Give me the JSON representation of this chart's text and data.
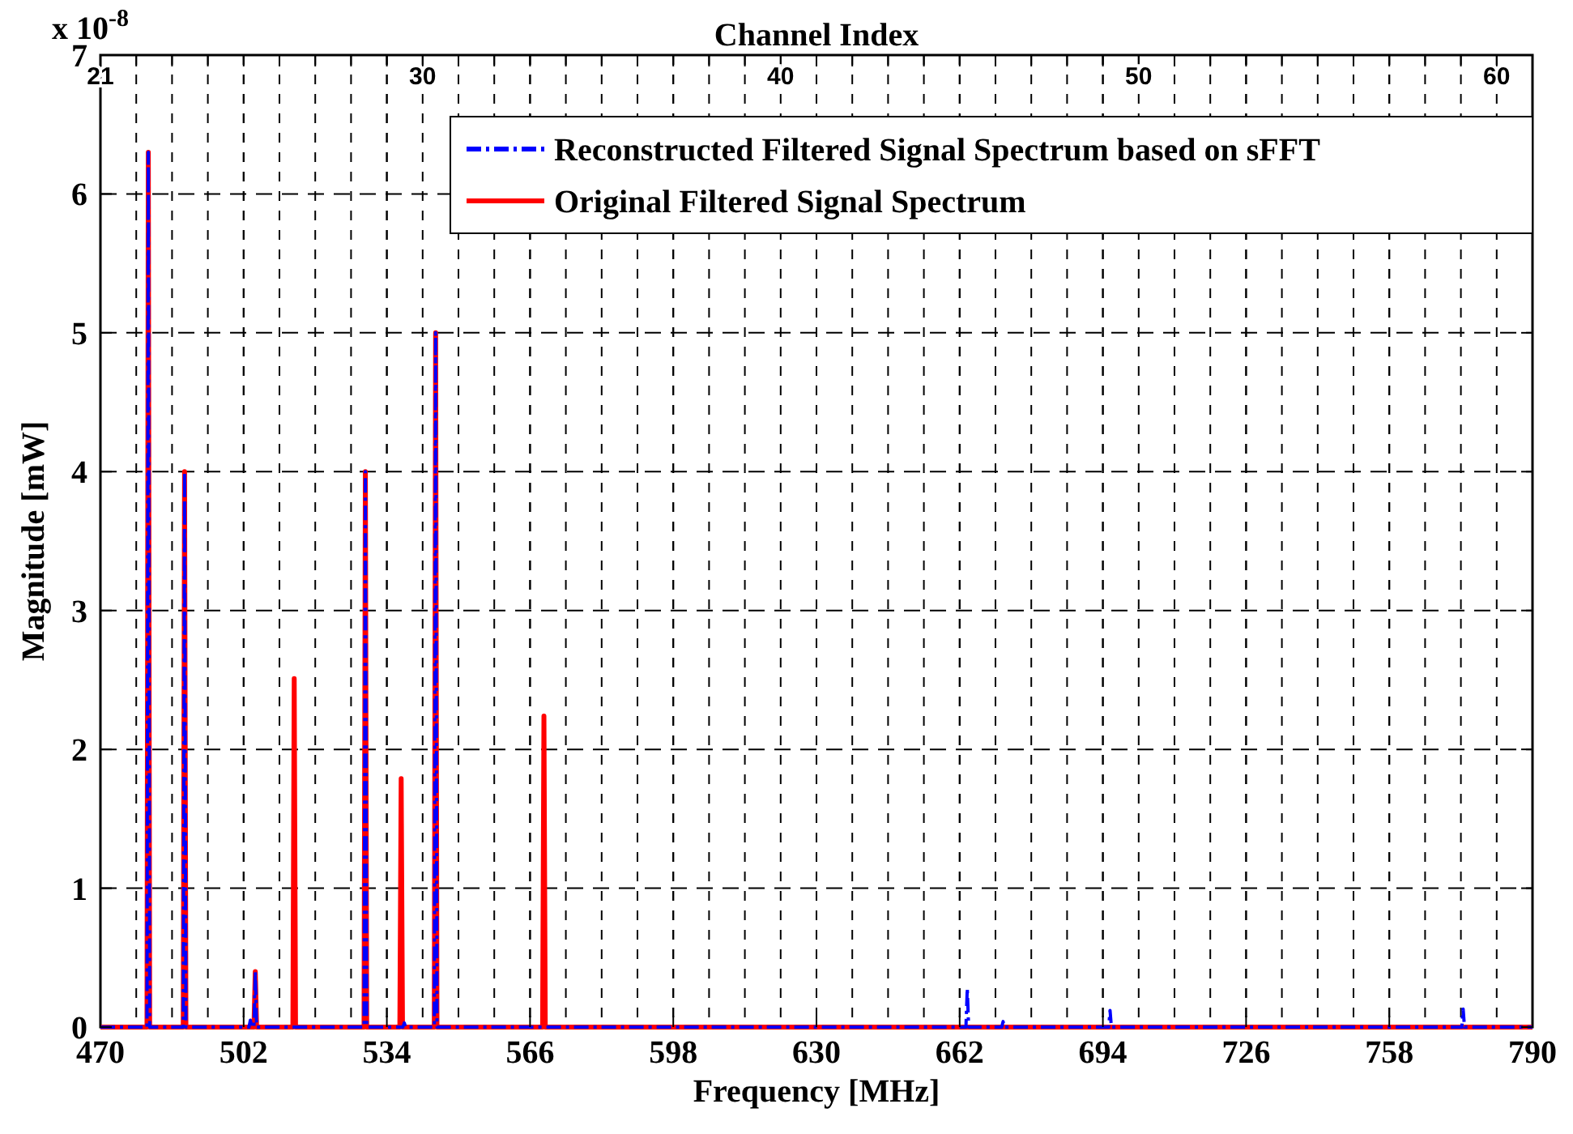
{
  "chart_data": {
    "type": "line",
    "x2label": "Channel Index",
    "xlabel": "Frequency [MHz]",
    "ylabel": "Magnitude [mW]",
    "annotations": [
      "x 10$^{-8}$"
    ],
    "xlim": [
      470,
      790
    ],
    "xticks": [
      470,
      502,
      534,
      566,
      598,
      630,
      662,
      694,
      726,
      758,
      790
    ],
    "x2lim": [
      21,
      61
    ],
    "x2ticks": [
      21,
      {
        "value": 22,
        "label": null
      },
      {
        "value": 23,
        "label": null
      },
      {
        "value": 24,
        "label": null
      },
      {
        "value": 25,
        "label": null
      },
      {
        "value": 26,
        "label": null
      },
      {
        "value": 27,
        "label": null
      },
      {
        "value": 28,
        "label": null
      },
      {
        "value": 29,
        "label": null
      },
      30,
      {
        "value": 31,
        "label": null
      },
      {
        "value": 32,
        "label": null
      },
      {
        "value": 33,
        "label": null
      },
      {
        "value": 34,
        "label": null
      },
      {
        "value": 35,
        "label": null
      },
      {
        "value": 36,
        "label": null
      },
      {
        "value": 37,
        "label": null
      },
      {
        "value": 38,
        "label": null
      },
      {
        "value": 39,
        "label": null
      },
      40,
      {
        "value": 41,
        "label": null
      },
      {
        "value": 42,
        "label": null
      },
      {
        "value": 43,
        "label": null
      },
      {
        "value": 44,
        "label": null
      },
      {
        "value": 45,
        "label": null
      },
      {
        "value": 46,
        "label": null
      },
      {
        "value": 47,
        "label": null
      },
      {
        "value": 48,
        "label": null
      },
      {
        "value": 49,
        "label": null
      },
      50,
      {
        "value": 51,
        "label": null
      },
      {
        "value": 52,
        "label": null
      },
      {
        "value": 53,
        "label": null
      },
      {
        "value": 54,
        "label": null
      },
      {
        "value": 55,
        "label": null
      },
      {
        "value": 56,
        "label": null
      },
      {
        "value": 57,
        "label": null
      },
      {
        "value": 58,
        "label": null
      },
      {
        "value": 59,
        "label": null
      },
      60,
      {
        "value": 61,
        "label": null
      }
    ],
    "ylim": [
      0,
      7
    ],
    "yticks": [
      0,
      1,
      2,
      3,
      4,
      5,
      6,
      7
    ],
    "grid": true,
    "legend": "top right",
    "marker": "none",
    "series": [
      {
        "name": "Reconstructed Filtered Signal Spectrum based on sFFT",
        "color": "#0000ff",
        "line_style": "dashed",
        "x": [
          470,
          480.4,
          480.7,
          481,
          488.5,
          488.8,
          489.1,
          503.2,
          503.5,
          503.8,
          504.3,
          504.6,
          504.9,
          528.9,
          529.2,
          529.5,
          537.6,
          537.9,
          538.2,
          544.6,
          544.9,
          545.2,
          663.4,
          663.7,
          664,
          671.4,
          671.7,
          672,
          695.3,
          695.6,
          695.9,
          774.2,
          774.5,
          774.8,
          790
        ],
        "values": [
          0,
          0,
          6.3,
          0,
          0,
          4.0,
          0,
          0,
          0.05,
          0,
          0,
          0.4,
          0,
          0,
          4.0,
          0,
          0,
          0.03,
          0,
          0,
          5.0,
          0,
          0,
          0.28,
          0,
          0,
          0.04,
          0,
          0,
          0.12,
          0,
          0,
          0.13,
          0,
          0
        ]
      },
      {
        "name": "Original Filtered Signal Spectrum",
        "color": "#ff0000",
        "line_style": "solid",
        "x": [
          470,
          480.4,
          480.7,
          481,
          488.5,
          488.8,
          489.1,
          504.3,
          504.6,
          504.9,
          513,
          513.3,
          513.6,
          528.9,
          529.2,
          529.5,
          536.9,
          537.2,
          537.5,
          544.6,
          544.9,
          545.2,
          568.8,
          569.1,
          569.4,
          790
        ],
        "values": [
          0,
          0,
          6.3,
          0,
          0,
          4.0,
          0,
          0,
          0.4,
          0,
          0,
          2.51,
          0,
          0,
          4.0,
          0,
          0,
          1.79,
          0,
          0,
          5.0,
          0,
          0,
          2.24,
          0,
          0
        ]
      }
    ]
  }
}
